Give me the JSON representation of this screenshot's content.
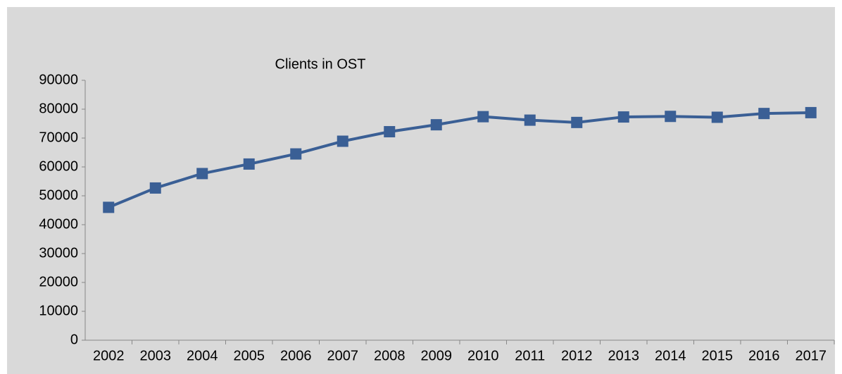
{
  "chart_data": {
    "type": "line",
    "title": "Clients in OST",
    "categories": [
      "2002",
      "2003",
      "2004",
      "2005",
      "2006",
      "2007",
      "2008",
      "2009",
      "2010",
      "2011",
      "2012",
      "2013",
      "2014",
      "2015",
      "2016",
      "2017"
    ],
    "series": [
      {
        "name": "Clients in OST",
        "color": "#3a5f95",
        "values": [
          46000,
          52700,
          57700,
          61000,
          64500,
          68900,
          72200,
          74600,
          77400,
          76200,
          75400,
          77300,
          77500,
          77200,
          78500,
          78800
        ]
      }
    ],
    "ylim": [
      0,
      90000
    ],
    "yticks": [
      0,
      10000,
      20000,
      30000,
      40000,
      50000,
      60000,
      70000,
      80000,
      90000
    ],
    "grid": false
  }
}
